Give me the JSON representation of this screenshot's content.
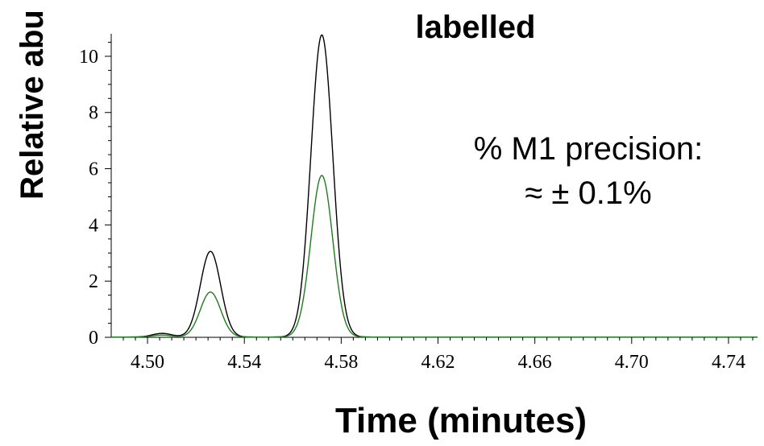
{
  "chart_data": {
    "type": "line",
    "title": "labelled",
    "xlabel": "Time (minutes)",
    "ylabel": "Relative abu",
    "xlim": [
      4.485,
      4.752
    ],
    "ylim": [
      0,
      10.8
    ],
    "x_ticks": [
      4.5,
      4.54,
      4.58,
      4.62,
      4.66,
      4.7,
      4.74
    ],
    "x_tick_labels": [
      "4.50",
      "4.54",
      "4.58",
      "4.62",
      "4.66",
      "4.70",
      "4.74"
    ],
    "y_ticks": [
      0,
      2,
      4,
      6,
      8,
      10
    ],
    "y_tick_labels": [
      "0",
      "2",
      "4",
      "6",
      "8",
      "10"
    ],
    "annotation": {
      "line1": "% M1 precision:",
      "line2": "≈ ± 0.1%"
    },
    "series": [
      {
        "color": "#000000",
        "peaks": [
          {
            "center": 4.506,
            "height": 0.13,
            "width": 0.004
          },
          {
            "center": 4.526,
            "height": 3.05,
            "width": 0.0042
          },
          {
            "center": 4.572,
            "height": 10.75,
            "width": 0.0045
          }
        ]
      },
      {
        "color": "#1e7d1e",
        "peaks": [
          {
            "center": 4.506,
            "height": 0.07,
            "width": 0.004
          },
          {
            "center": 4.526,
            "height": 1.6,
            "width": 0.0042
          },
          {
            "center": 4.572,
            "height": 5.75,
            "width": 0.0045
          }
        ]
      }
    ],
    "grid": false,
    "legend": "none"
  }
}
